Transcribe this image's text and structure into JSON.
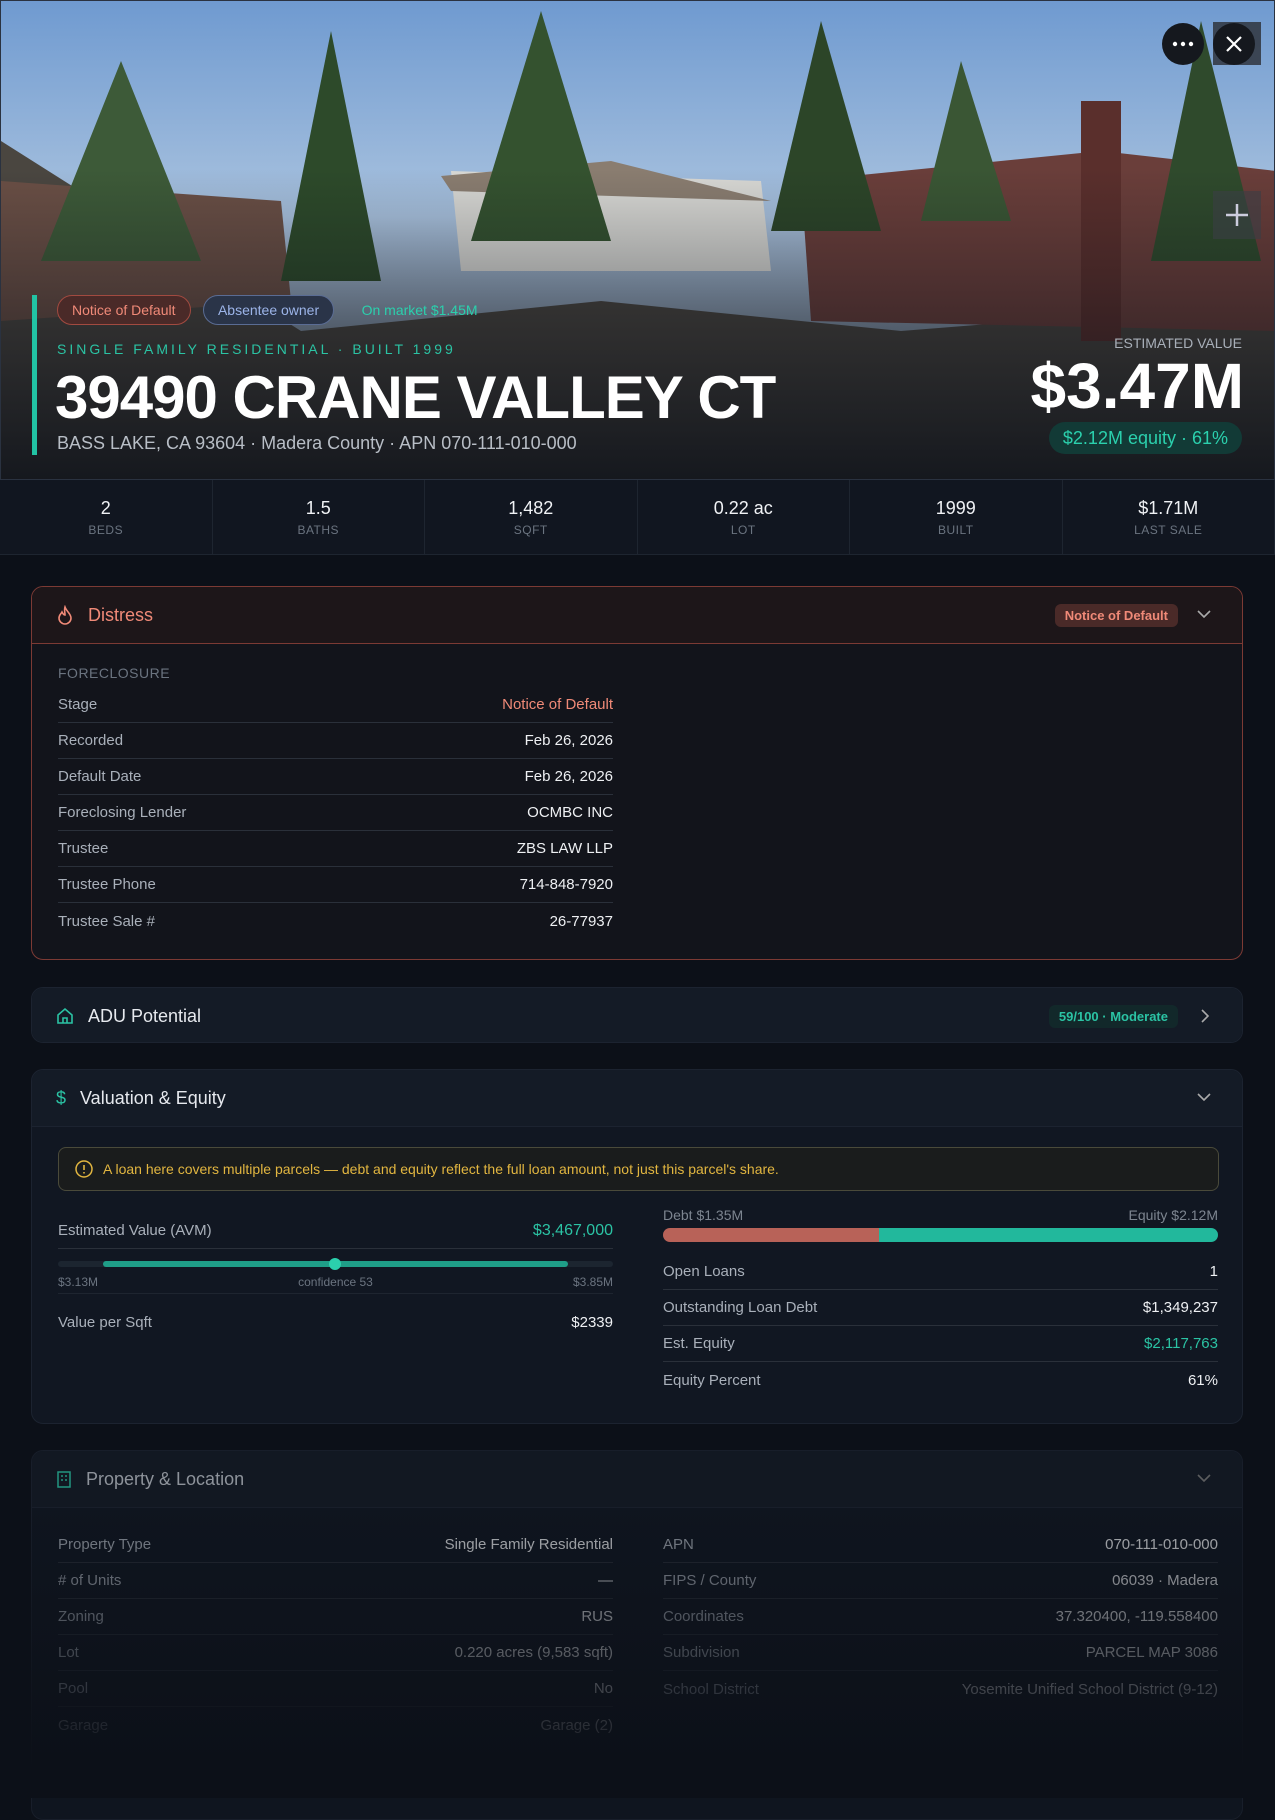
{
  "hero": {
    "tags": [
      "Notice of Default",
      "Absentee owner",
      "On market $1.45M"
    ],
    "subtitle": "SINGLE FAMILY RESIDENTIAL · BUILT 1999",
    "title": "39490 CRANE VALLEY CT",
    "address": "BASS LAKE, CA 93604 · Madera County · APN 070-111-010-000",
    "estimate_label": "ESTIMATED VALUE",
    "estimate": "$3.47M",
    "equity": "$2.12M equity · 61%"
  },
  "stats": [
    {
      "value": "2",
      "label": "BEDS"
    },
    {
      "value": "1.5",
      "label": "BATHS"
    },
    {
      "value": "1,482",
      "label": "SQFT"
    },
    {
      "value": "0.22 ac",
      "label": "LOT"
    },
    {
      "value": "1999",
      "label": "BUILT"
    },
    {
      "value": "$1.71M",
      "label": "LAST SALE"
    }
  ],
  "distress": {
    "title": "Distress",
    "badge": "Notice of Default",
    "group": "FORECLOSURE",
    "rows": [
      [
        "Stage",
        "Notice of Default"
      ],
      [
        "Recorded",
        "Feb 26, 2026"
      ],
      [
        "Default Date",
        "Feb 26, 2026"
      ],
      [
        "Foreclosing Lender",
        "OCMBC INC"
      ],
      [
        "Trustee",
        "ZBS LAW LLP"
      ],
      [
        "Trustee Phone",
        "714-848-7920"
      ],
      [
        "Trustee Sale #",
        "26-77937"
      ]
    ]
  },
  "adu": {
    "title": "ADU Potential",
    "score": "59/100 · Moderate"
  },
  "valuation": {
    "title": "Valuation & Equity",
    "warning": "A loan here covers multiple parcels — debt and equity reflect the full loan amount, not just this parcel's share.",
    "avm_label": "Estimated Value (AVM)",
    "avm": "$3,467,000",
    "range_low": "$3.13M",
    "confidence": "confidence 53",
    "range_high": "$3.85M",
    "left_rows": [
      [
        "Value per Sqft",
        "$2339"
      ]
    ],
    "debt": "Debt $1.35M",
    "equity": "Equity $2.12M",
    "right_rows": [
      [
        "Open Loans",
        "1"
      ],
      [
        "Outstanding Loan Debt",
        "$1,349,237"
      ],
      [
        "Est. Equity",
        "$2,117,763"
      ],
      [
        "Equity Percent",
        "61%"
      ]
    ]
  },
  "property": {
    "title": "Property & Location",
    "left_rows": [
      [
        "Property Type",
        "Single Family Residential"
      ],
      [
        "# of Units",
        "—"
      ],
      [
        "Zoning",
        "RUS"
      ],
      [
        "Lot",
        "0.220 acres (9,583 sqft)"
      ],
      [
        "Pool",
        "No"
      ],
      [
        "Garage",
        "Garage (2)"
      ]
    ],
    "right_rows": [
      [
        "APN",
        "070-111-010-000"
      ],
      [
        "FIPS / County",
        "06039 · Madera"
      ],
      [
        "Coordinates",
        "37.320400, -119.558400"
      ],
      [
        "Subdivision",
        "PARCEL MAP 3086"
      ],
      [
        "School District",
        "Yosemite Unified School District (9-12)"
      ]
    ]
  }
}
